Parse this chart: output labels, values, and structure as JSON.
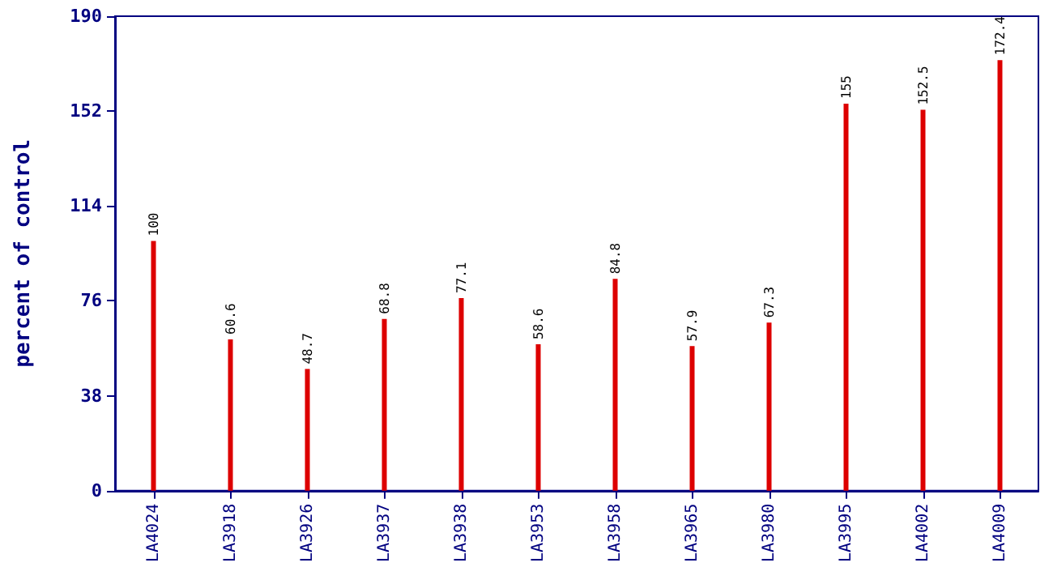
{
  "chart_data": {
    "type": "bar",
    "ylabel": "percent of control",
    "categories": [
      "LA4024",
      "LA3918",
      "LA3926",
      "LA3937",
      "LA3938",
      "LA3953",
      "LA3958",
      "LA3965",
      "LA3980",
      "LA3995",
      "LA4002",
      "LA4009"
    ],
    "values": [
      100,
      60.6,
      48.7,
      68.8,
      77.1,
      58.6,
      84.8,
      57.9,
      67.3,
      155,
      152.5,
      172.4
    ],
    "color": "#dd0000",
    "ylim": [
      0,
      190
    ],
    "yticks": [
      0,
      38,
      76,
      114,
      152,
      190
    ],
    "grid": false,
    "data_labels": true
  }
}
